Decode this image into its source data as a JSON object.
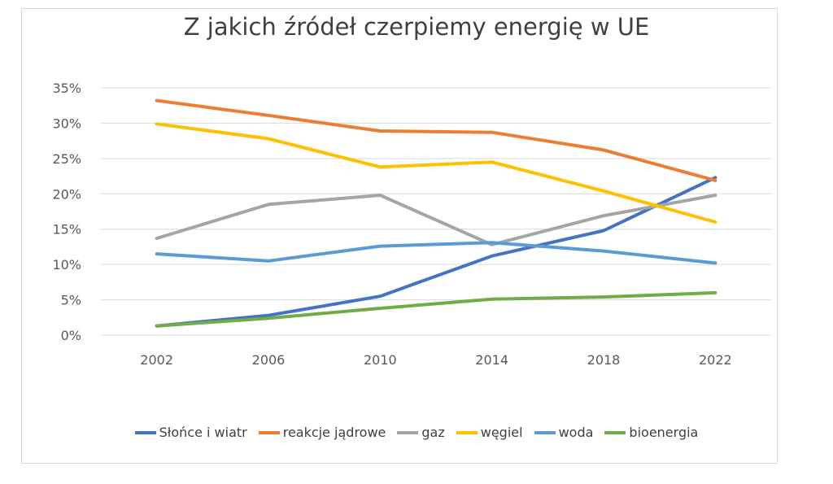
{
  "chart_data": {
    "type": "line",
    "title": "Z jakich źródeł czerpiemy energię w UE",
    "xlabel": "",
    "ylabel": "",
    "categories": [
      "2002",
      "2006",
      "2010",
      "2014",
      "2018",
      "2022"
    ],
    "y_ticks": [
      "0%",
      "5%",
      "10%",
      "15%",
      "20%",
      "25%",
      "30%",
      "35%"
    ],
    "ylim": [
      0,
      35
    ],
    "grid": true,
    "legend_position": "bottom",
    "series": [
      {
        "name": "Słońce i wiatr",
        "color": "#4472c4",
        "values": [
          1.3,
          2.8,
          5.5,
          11.2,
          14.8,
          22.3
        ]
      },
      {
        "name": "reakcje jądrowe",
        "color": "#ed7d31",
        "values": [
          33.2,
          31.1,
          28.9,
          28.7,
          26.2,
          21.9
        ]
      },
      {
        "name": "gaz",
        "color": "#a5a5a5",
        "values": [
          13.7,
          18.5,
          19.8,
          12.8,
          16.9,
          19.8
        ]
      },
      {
        "name": "węgiel",
        "color": "#ffc000",
        "values": [
          29.9,
          27.8,
          23.8,
          24.5,
          20.4,
          16.0
        ]
      },
      {
        "name": "woda",
        "color": "#5b9bd5",
        "values": [
          11.5,
          10.5,
          12.6,
          13.1,
          11.9,
          10.2
        ]
      },
      {
        "name": "bioenergia",
        "color": "#70ad47",
        "values": [
          1.3,
          2.4,
          3.8,
          5.1,
          5.4,
          6.0
        ]
      }
    ]
  }
}
